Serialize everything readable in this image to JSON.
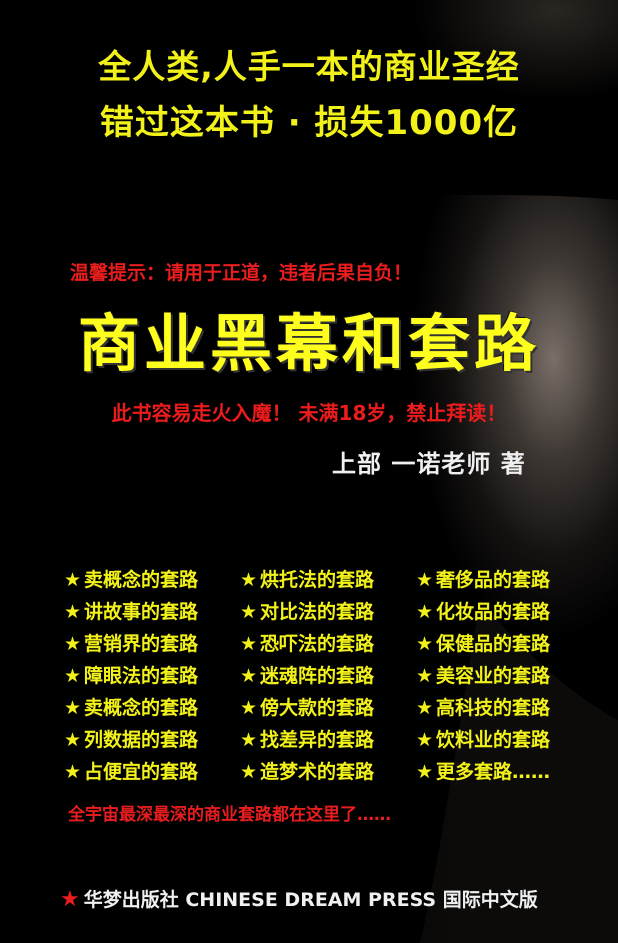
{
  "cover": {
    "slogan_line1": "全人类,人手一本的商业圣经",
    "slogan_line2": "错过这本书 · 损失1000亿",
    "warning_top": "温馨提示：请用于正道，违者后果自负！",
    "title": "商业黑幕和套路",
    "warning_bottom": "此书容易走火入魔！ 未满18岁，禁止拜读！",
    "author_line": "上部  一诺老师 著",
    "topics": [
      "卖概念的套路",
      "烘托法的套路",
      "奢侈品的套路",
      "讲故事的套路",
      "对比法的套路",
      "化妆品的套路",
      "营销界的套路",
      "恐吓法的套路",
      "保健品的套路",
      "障眼法的套路",
      "迷魂阵的套路",
      "美容业的套路",
      "卖概念的套路",
      "傍大款的套路",
      "高科技的套路",
      "列数据的套路",
      "找差异的套路",
      "饮料业的套路",
      "占便宜的套路",
      "造梦术的套路",
      "更多套路……"
    ],
    "topic_bullet": "★",
    "tagline": "全宇宙最深最深的商业套路都在这里了……",
    "publisher_star": "★",
    "publisher": "华梦出版社 CHINESE DREAM PRESS 国际中文版"
  },
  "colors": {
    "background": "#000000",
    "headline_yellow": "#f2f21a",
    "warning_red": "#e81d1d",
    "author_white": "#f0f0f0"
  }
}
